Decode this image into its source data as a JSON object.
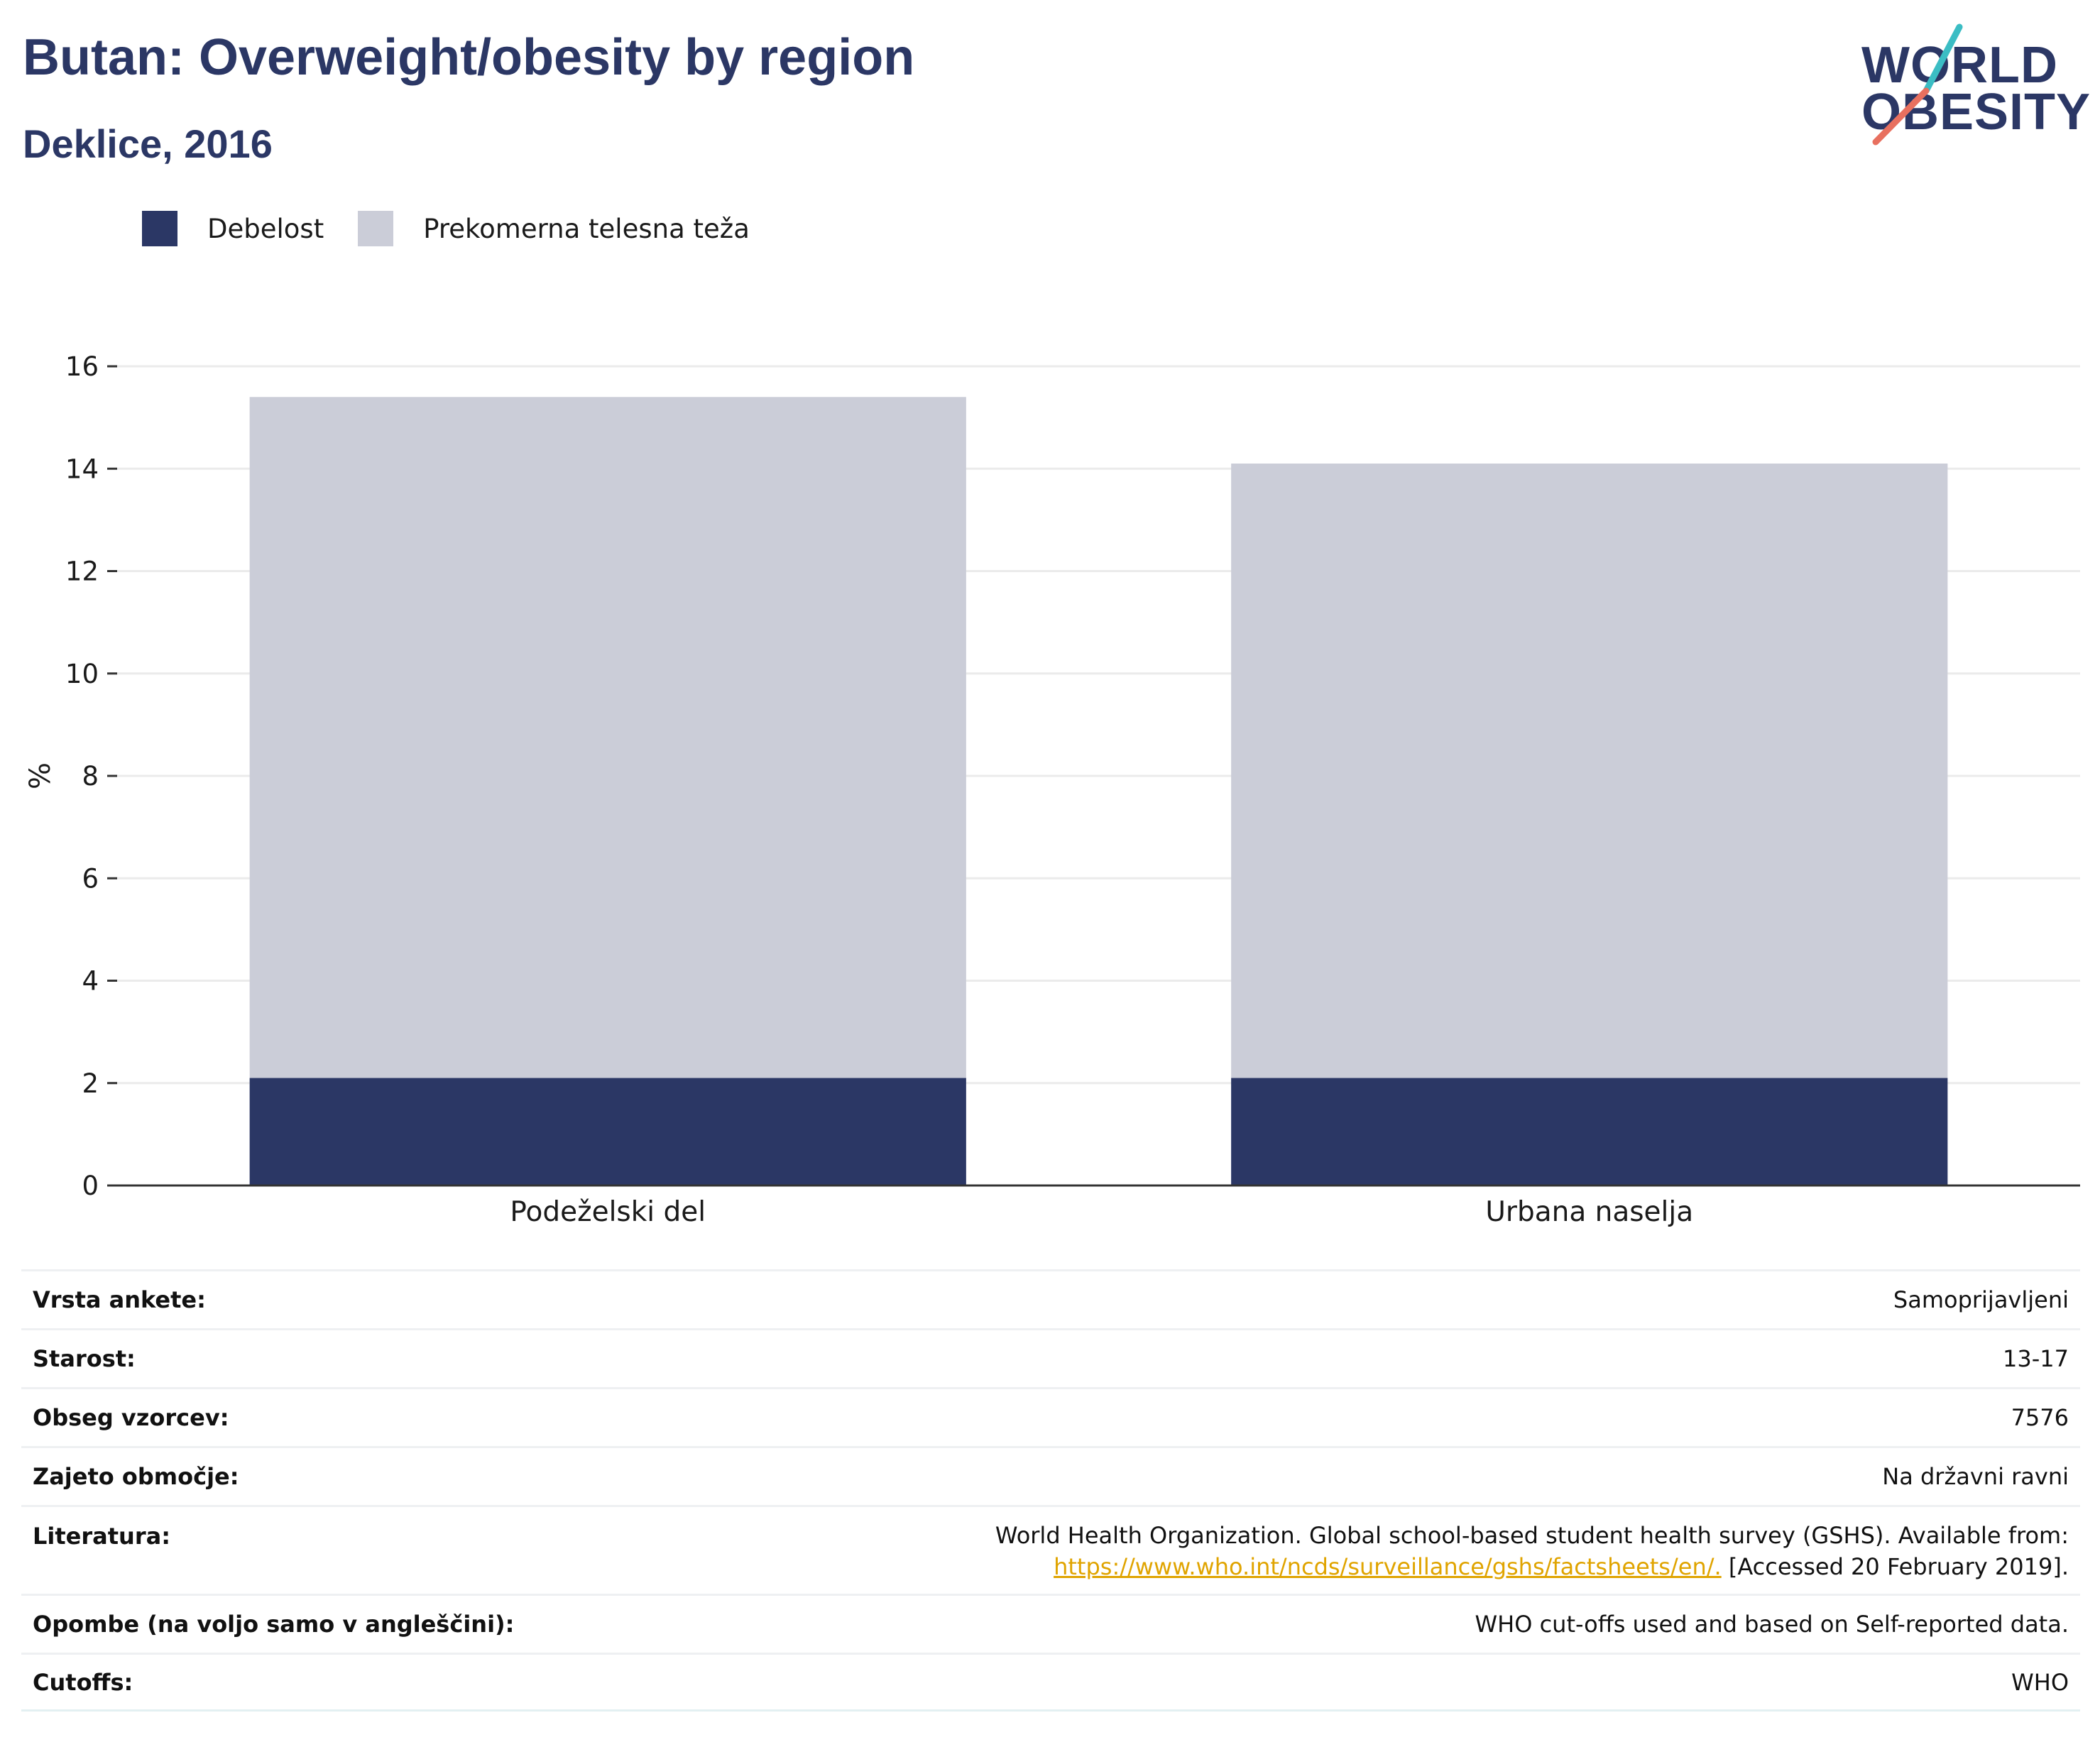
{
  "header": {
    "title": "Butan: Overweight/obesity by region",
    "subtitle": "Deklice, 2016"
  },
  "logo": {
    "line1": "WORLD",
    "line2": "OBESITY",
    "colors": {
      "text": "#2b3765",
      "slash_top": "#3bbdc4",
      "slash_bottom": "#e8705f"
    }
  },
  "legend": [
    {
      "label": "Debelost",
      "color": "#2b3765"
    },
    {
      "label": "Prekomerna telesna teža",
      "color": "#cbcdd8"
    }
  ],
  "chart_data": {
    "type": "bar",
    "stacked": true,
    "categories": [
      "Podeželski del",
      "Urbana naselja"
    ],
    "series": [
      {
        "name": "Debelost",
        "values": [
          2.1,
          2.1
        ],
        "color": "#2b3765"
      },
      {
        "name": "Prekomerna telesna teža",
        "values": [
          13.3,
          12.0
        ],
        "color": "#cbcdd8"
      }
    ],
    "ylabel": "%",
    "ylim": [
      0,
      16
    ],
    "yticks": [
      "0",
      "2",
      "4",
      "6",
      "8",
      "10",
      "12",
      "14",
      "16"
    ],
    "grid": true,
    "legend_position": "top-left"
  },
  "info": [
    {
      "label": "Vrsta ankete:",
      "value": "Samoprijavljeni"
    },
    {
      "label": "Starost:",
      "value": "13-17"
    },
    {
      "label": "Obseg vzorcev:",
      "value": "7576"
    },
    {
      "label": "Zajeto območje:",
      "value": "Na državni ravni"
    },
    {
      "label": "Literatura:",
      "value": "World Health Organization. Global school-based student health survey (GSHS). Available from:",
      "link": "https://www.who.int/ncds/surveillance/gshs/factsheets/en/.",
      "value_after": "[Accessed 20 February 2019]."
    },
    {
      "label": "Opombe (na voljo samo v angleščini):",
      "value": "WHO cut-offs used and based on Self-reported data."
    },
    {
      "label": "Cutoffs:",
      "value": "WHO"
    }
  ]
}
